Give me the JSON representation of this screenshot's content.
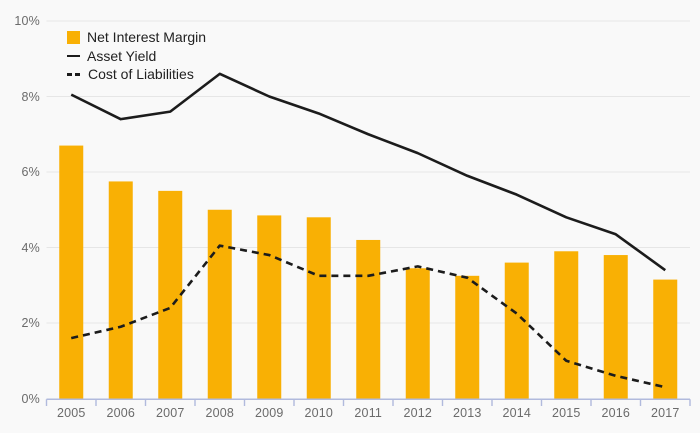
{
  "chart_data": {
    "type": "bar",
    "title": "",
    "categories": [
      "2005",
      "2006",
      "2007",
      "2008",
      "2009",
      "2010",
      "2011",
      "2012",
      "2013",
      "2014",
      "2015",
      "2016",
      "2017"
    ],
    "series": [
      {
        "name": "Net Interest Margin",
        "render": "bar",
        "color": "#F9B004",
        "values": [
          6.7,
          5.75,
          5.5,
          5.0,
          4.85,
          4.8,
          4.2,
          3.45,
          3.25,
          3.6,
          3.9,
          3.8,
          3.15
        ]
      },
      {
        "name": "Asset Yield",
        "render": "line",
        "line_style": "solid",
        "color": "#1c1c1c",
        "values": [
          8.05,
          7.4,
          7.6,
          8.6,
          8.0,
          7.55,
          7.0,
          6.5,
          5.9,
          5.4,
          4.8,
          4.35,
          3.4
        ]
      },
      {
        "name": "Cost of Liabilities",
        "render": "line",
        "line_style": "dashed",
        "color": "#1c1c1c",
        "values": [
          1.6,
          1.9,
          2.4,
          4.05,
          3.8,
          3.25,
          3.25,
          3.5,
          3.2,
          2.25,
          1.0,
          0.6,
          0.3
        ]
      }
    ],
    "xlabel": "",
    "ylabel": "",
    "ylim": [
      0,
      10
    ],
    "yticks": [
      0,
      2,
      4,
      6,
      8,
      10
    ],
    "ytick_labels": [
      "0%",
      "2%",
      "4%",
      "6%",
      "8%",
      "10%"
    ],
    "grid": true,
    "legend_position": "top-left"
  },
  "style": {
    "background": "#f9f9f9",
    "gridline_color": "#e6e6e6",
    "axis_color": "#b1badd",
    "tick_label_color": "#6b6b6b",
    "legend_text_color": "#212121",
    "bar_color": "#F9B004",
    "line_color": "#1c1c1c"
  }
}
